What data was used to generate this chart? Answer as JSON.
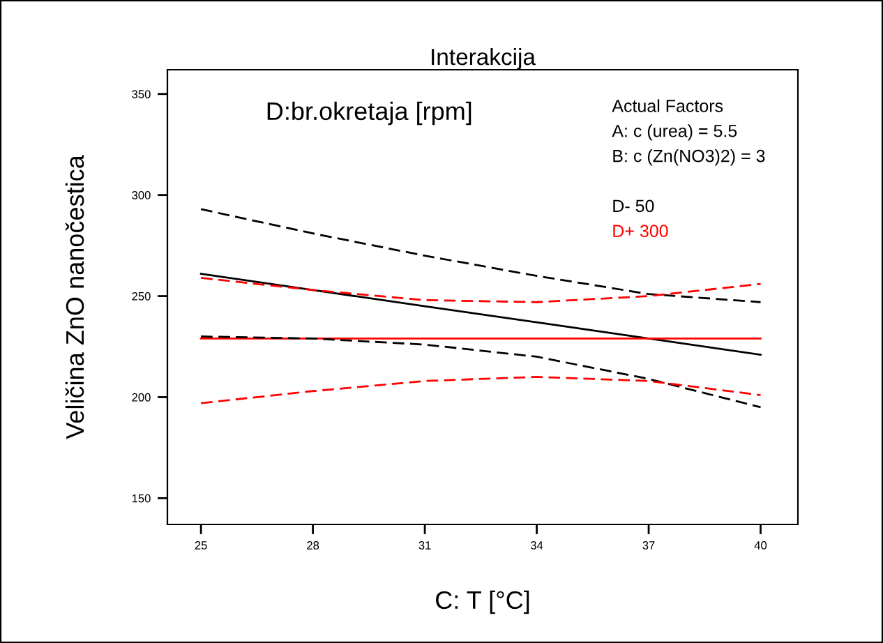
{
  "chart_data": {
    "type": "line",
    "title": "Interakcija",
    "xlabel": "C: T [°C]",
    "ylabel": "Veličina ZnO nanočestica",
    "subtitle": "D:br.okretaja [rpm]",
    "annotations": [
      "Actual Factors",
      "A: c (urea) = 5.5",
      "B: c (Zn(NO3)2) = 3"
    ],
    "x": [
      25,
      28,
      31,
      34,
      37,
      40
    ],
    "series": [
      {
        "name": "D- 50",
        "color": "#000000",
        "values": [
          261,
          253,
          245,
          237,
          229,
          221
        ]
      },
      {
        "name": "D+ 300",
        "color": "#ff0000",
        "values": [
          229,
          229,
          229,
          229,
          229,
          229
        ]
      },
      {
        "color": "#000000",
        "line_style": "dashed",
        "values": [
          230,
          229,
          226,
          220,
          209,
          195
        ]
      },
      {
        "color": "#000000",
        "line_style": "dashed",
        "values": [
          293,
          281,
          270,
          260,
          251,
          247
        ]
      },
      {
        "color": "#ff0000",
        "line_style": "dashed",
        "values": [
          197,
          203,
          208,
          210,
          208,
          201
        ]
      },
      {
        "color": "#ff0000",
        "line_style": "dashed",
        "values": [
          259,
          253,
          248,
          247,
          250,
          256
        ]
      }
    ],
    "xlim": [
      24.1,
      41
    ],
    "ylim": [
      137,
      362
    ],
    "xticks": [
      25,
      28,
      31,
      34,
      37,
      40
    ],
    "yticks": [
      150,
      200,
      250,
      300,
      350
    ],
    "grid": false,
    "legend": "top right",
    "marker": "none",
    "line_style": "solid"
  }
}
